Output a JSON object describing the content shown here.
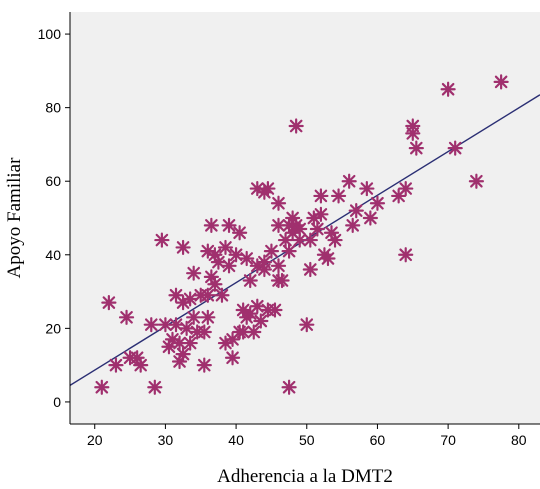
{
  "chart_data": {
    "type": "scatter",
    "xlabel": "Adherencia a la DMT2",
    "ylabel": "Apoyo Familiar",
    "xlim": [
      16.5,
      83
    ],
    "ylim": [
      -6,
      106
    ],
    "xticks": [
      20,
      30,
      40,
      50,
      60,
      70,
      80
    ],
    "yticks": [
      0,
      20,
      40,
      60,
      80,
      100
    ],
    "colors": {
      "plot_background": "#f0f0f0",
      "marker": "#a0306e",
      "fit_line": "#2b2f74",
      "axis": "#000000"
    },
    "marker_symbol": "asterisk-star",
    "grid": false,
    "fit_line": {
      "x": [
        16.5,
        83
      ],
      "y": [
        4.5,
        83.5
      ]
    },
    "points": [
      {
        "x": 21,
        "y": 4
      },
      {
        "x": 22,
        "y": 27
      },
      {
        "x": 23,
        "y": 10
      },
      {
        "x": 24.5,
        "y": 23
      },
      {
        "x": 25,
        "y": 12
      },
      {
        "x": 26,
        "y": 12
      },
      {
        "x": 26.5,
        "y": 10
      },
      {
        "x": 28,
        "y": 21
      },
      {
        "x": 28.5,
        "y": 4
      },
      {
        "x": 29.5,
        "y": 44
      },
      {
        "x": 30,
        "y": 21
      },
      {
        "x": 30.5,
        "y": 15
      },
      {
        "x": 31,
        "y": 17
      },
      {
        "x": 31.5,
        "y": 29
      },
      {
        "x": 31.5,
        "y": 21
      },
      {
        "x": 32,
        "y": 11
      },
      {
        "x": 32,
        "y": 16
      },
      {
        "x": 32.5,
        "y": 42
      },
      {
        "x": 32.5,
        "y": 27
      },
      {
        "x": 32.5,
        "y": 13
      },
      {
        "x": 33,
        "y": 20
      },
      {
        "x": 33.5,
        "y": 28
      },
      {
        "x": 33.5,
        "y": 16
      },
      {
        "x": 34,
        "y": 35
      },
      {
        "x": 34,
        "y": 23
      },
      {
        "x": 34.5,
        "y": 19
      },
      {
        "x": 35,
        "y": 29
      },
      {
        "x": 35.5,
        "y": 10
      },
      {
        "x": 35.5,
        "y": 19
      },
      {
        "x": 36,
        "y": 41
      },
      {
        "x": 36,
        "y": 29
      },
      {
        "x": 36,
        "y": 23
      },
      {
        "x": 36.5,
        "y": 48
      },
      {
        "x": 36.5,
        "y": 34
      },
      {
        "x": 37,
        "y": 40
      },
      {
        "x": 37,
        "y": 32
      },
      {
        "x": 37.5,
        "y": 38
      },
      {
        "x": 38,
        "y": 29
      },
      {
        "x": 38.5,
        "y": 16
      },
      {
        "x": 38.5,
        "y": 42
      },
      {
        "x": 39,
        "y": 48
      },
      {
        "x": 39,
        "y": 37
      },
      {
        "x": 39.5,
        "y": 12
      },
      {
        "x": 39.5,
        "y": 17
      },
      {
        "x": 40,
        "y": 40
      },
      {
        "x": 40.5,
        "y": 46
      },
      {
        "x": 40.5,
        "y": 19
      },
      {
        "x": 41,
        "y": 25
      },
      {
        "x": 41,
        "y": 19
      },
      {
        "x": 41.5,
        "y": 39
      },
      {
        "x": 41.5,
        "y": 23
      },
      {
        "x": 42,
        "y": 33
      },
      {
        "x": 42,
        "y": 24
      },
      {
        "x": 42.5,
        "y": 19
      },
      {
        "x": 43,
        "y": 37
      },
      {
        "x": 43,
        "y": 26
      },
      {
        "x": 43,
        "y": 58
      },
      {
        "x": 43.5,
        "y": 22
      },
      {
        "x": 44,
        "y": 57
      },
      {
        "x": 44,
        "y": 36
      },
      {
        "x": 44,
        "y": 38
      },
      {
        "x": 44.5,
        "y": 25
      },
      {
        "x": 44.5,
        "y": 58
      },
      {
        "x": 45,
        "y": 41
      },
      {
        "x": 45.5,
        "y": 25
      },
      {
        "x": 46,
        "y": 54
      },
      {
        "x": 46,
        "y": 48
      },
      {
        "x": 46,
        "y": 37
      },
      {
        "x": 46,
        "y": 33
      },
      {
        "x": 46.5,
        "y": 33
      },
      {
        "x": 47,
        "y": 44
      },
      {
        "x": 47.5,
        "y": 48
      },
      {
        "x": 47.5,
        "y": 41
      },
      {
        "x": 47.5,
        "y": 4
      },
      {
        "x": 48,
        "y": 50
      },
      {
        "x": 48,
        "y": 46
      },
      {
        "x": 48.5,
        "y": 75
      },
      {
        "x": 48.5,
        "y": 48
      },
      {
        "x": 49,
        "y": 44
      },
      {
        "x": 49,
        "y": 47
      },
      {
        "x": 50,
        "y": 21
      },
      {
        "x": 50.5,
        "y": 44
      },
      {
        "x": 50.5,
        "y": 36
      },
      {
        "x": 51,
        "y": 50
      },
      {
        "x": 51.5,
        "y": 47
      },
      {
        "x": 52,
        "y": 51
      },
      {
        "x": 52,
        "y": 56
      },
      {
        "x": 52.5,
        "y": 40
      },
      {
        "x": 53,
        "y": 39
      },
      {
        "x": 53.5,
        "y": 46
      },
      {
        "x": 54,
        "y": 44
      },
      {
        "x": 54.5,
        "y": 56
      },
      {
        "x": 56,
        "y": 60
      },
      {
        "x": 56.5,
        "y": 48
      },
      {
        "x": 57,
        "y": 52
      },
      {
        "x": 58.5,
        "y": 58
      },
      {
        "x": 59,
        "y": 50
      },
      {
        "x": 60,
        "y": 54
      },
      {
        "x": 63,
        "y": 56
      },
      {
        "x": 64,
        "y": 58
      },
      {
        "x": 64,
        "y": 40
      },
      {
        "x": 65,
        "y": 75
      },
      {
        "x": 65,
        "y": 73
      },
      {
        "x": 65.5,
        "y": 69
      },
      {
        "x": 70,
        "y": 85
      },
      {
        "x": 71,
        "y": 69
      },
      {
        "x": 74,
        "y": 60
      },
      {
        "x": 77.5,
        "y": 87
      }
    ]
  }
}
